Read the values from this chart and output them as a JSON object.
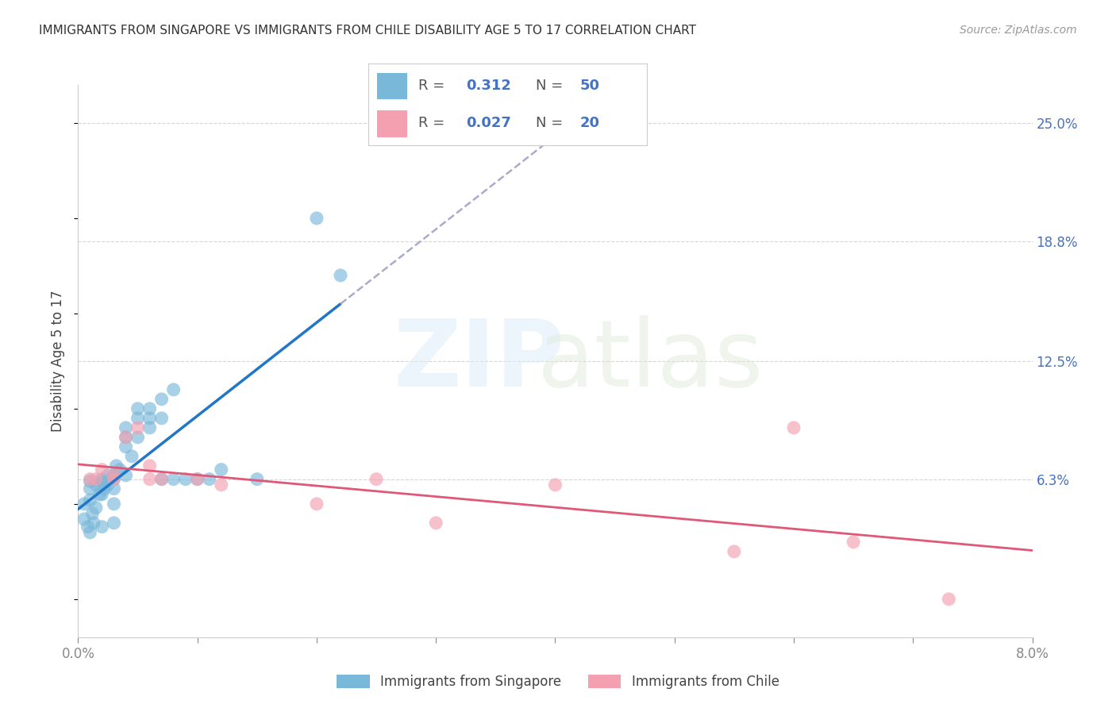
{
  "title": "IMMIGRANTS FROM SINGAPORE VS IMMIGRANTS FROM CHILE DISABILITY AGE 5 TO 17 CORRELATION CHART",
  "source": "Source: ZipAtlas.com",
  "ylabel": "Disability Age 5 to 17",
  "xlim": [
    0.0,
    0.08
  ],
  "ylim": [
    -0.02,
    0.27
  ],
  "xticks": [
    0.0,
    0.01,
    0.02,
    0.03,
    0.04,
    0.05,
    0.06,
    0.07,
    0.08
  ],
  "xticklabels": [
    "0.0%",
    "",
    "",
    "",
    "",
    "",
    "",
    "",
    "8.0%"
  ],
  "yticks_right": [
    0.063,
    0.125,
    0.188,
    0.25
  ],
  "yticklabels_right": [
    "6.3%",
    "12.5%",
    "18.8%",
    "25.0%"
  ],
  "singapore_color": "#7ab8d9",
  "chile_color": "#f4a0b0",
  "singapore_line_color": "#2176c7",
  "chile_line_color": "#e05878",
  "dashed_line_color": "#aaaacc",
  "R_singapore": 0.312,
  "N_singapore": 50,
  "R_chile": 0.027,
  "N_chile": 20,
  "legend_label_singapore": "Immigrants from Singapore",
  "legend_label_chile": "Immigrants from Chile",
  "background_color": "#ffffff",
  "singapore_x": [
    0.0005,
    0.0005,
    0.0008,
    0.001,
    0.001,
    0.001,
    0.001,
    0.0012,
    0.0013,
    0.0015,
    0.0015,
    0.0018,
    0.002,
    0.002,
    0.002,
    0.002,
    0.002,
    0.0022,
    0.0025,
    0.0025,
    0.003,
    0.003,
    0.003,
    0.003,
    0.003,
    0.0032,
    0.0035,
    0.004,
    0.004,
    0.004,
    0.004,
    0.0045,
    0.005,
    0.005,
    0.005,
    0.006,
    0.006,
    0.006,
    0.007,
    0.007,
    0.007,
    0.008,
    0.008,
    0.009,
    0.01,
    0.011,
    0.012,
    0.015,
    0.02,
    0.022
  ],
  "singapore_y": [
    0.05,
    0.042,
    0.038,
    0.062,
    0.058,
    0.052,
    0.035,
    0.045,
    0.04,
    0.06,
    0.048,
    0.055,
    0.063,
    0.062,
    0.06,
    0.055,
    0.038,
    0.058,
    0.065,
    0.06,
    0.065,
    0.063,
    0.058,
    0.05,
    0.04,
    0.07,
    0.068,
    0.08,
    0.09,
    0.085,
    0.065,
    0.075,
    0.095,
    0.1,
    0.085,
    0.1,
    0.095,
    0.09,
    0.105,
    0.095,
    0.063,
    0.11,
    0.063,
    0.063,
    0.063,
    0.063,
    0.068,
    0.063,
    0.2,
    0.17
  ],
  "chile_x": [
    0.001,
    0.0015,
    0.002,
    0.003,
    0.003,
    0.004,
    0.005,
    0.006,
    0.006,
    0.007,
    0.01,
    0.012,
    0.02,
    0.025,
    0.03,
    0.04,
    0.055,
    0.06,
    0.065,
    0.073
  ],
  "chile_y": [
    0.063,
    0.063,
    0.068,
    0.065,
    0.063,
    0.085,
    0.09,
    0.063,
    0.07,
    0.063,
    0.063,
    0.06,
    0.05,
    0.063,
    0.04,
    0.06,
    0.025,
    0.09,
    0.03,
    0.0
  ],
  "sg_line_x_start": 0.0,
  "sg_line_x_end": 0.022,
  "sg_line_x_dash_end": 0.08
}
